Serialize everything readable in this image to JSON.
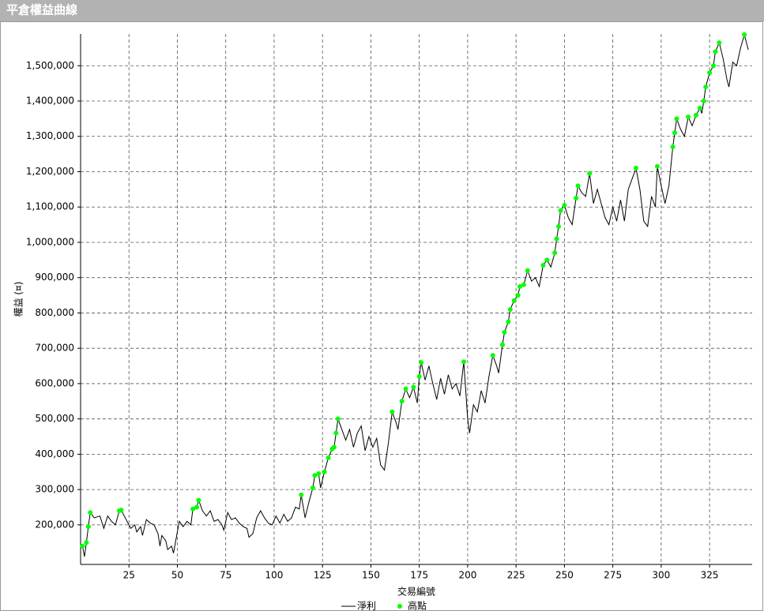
{
  "chart_data": {
    "type": "line",
    "title": "平倉權益曲線",
    "x_label": "交易編號",
    "y_label": "權益 (¤)",
    "xlim": [
      0,
      347
    ],
    "xticks": [
      25,
      50,
      75,
      100,
      125,
      150,
      175,
      200,
      225,
      250,
      275,
      300,
      325
    ],
    "ylim": [
      88000,
      1590000
    ],
    "yticks": [
      {
        "value": 200000,
        "label": "200,000"
      },
      {
        "value": 300000,
        "label": "300,000"
      },
      {
        "value": 400000,
        "label": "400,000"
      },
      {
        "value": 500000,
        "label": "500,000"
      },
      {
        "value": 600000,
        "label": "600,000"
      },
      {
        "value": 700000,
        "label": "700,000"
      },
      {
        "value": 800000,
        "label": "800,000"
      },
      {
        "value": 900000,
        "label": "900,000"
      },
      {
        "value": 1000000,
        "label": "1,000,000"
      },
      {
        "value": 1100000,
        "label": "1,100,000"
      },
      {
        "value": 1200000,
        "label": "1,200,000"
      },
      {
        "value": 1300000,
        "label": "1,300,000"
      },
      {
        "value": 1400000,
        "label": "1,400,000"
      },
      {
        "value": 1500000,
        "label": "1,500,000"
      }
    ],
    "grid": true,
    "legend": "bottom",
    "series": [
      {
        "name": "淨利",
        "color": "#000000",
        "style": "line",
        "x": [
          1,
          2,
          3,
          4,
          5,
          7,
          10,
          12,
          14,
          16,
          18,
          20,
          21,
          24,
          26,
          28,
          29,
          31,
          32,
          34,
          36,
          38,
          40,
          41,
          42,
          44,
          45,
          47,
          48,
          49,
          51,
          53,
          55,
          57,
          58,
          60,
          61,
          63,
          65,
          67,
          69,
          71,
          73,
          74,
          76,
          78,
          80,
          82,
          84,
          86,
          87,
          89,
          91,
          93,
          95,
          97,
          99,
          101,
          103,
          105,
          107,
          109,
          111,
          113,
          114,
          116,
          118,
          120,
          121,
          123,
          124,
          126,
          128,
          130,
          131,
          132,
          133,
          135,
          137,
          139,
          141,
          143,
          145,
          147,
          149,
          151,
          153,
          155,
          157,
          159,
          161,
          163,
          164,
          166,
          168,
          170,
          172,
          174,
          175,
          176,
          178,
          180,
          182,
          184,
          186,
          188,
          190,
          192,
          194,
          196,
          198,
          200,
          201,
          203,
          205,
          207,
          209,
          211,
          213,
          215,
          216,
          218,
          219,
          221,
          222,
          224,
          226,
          227,
          229,
          231,
          233,
          235,
          237,
          239,
          241,
          243,
          245,
          246,
          247,
          248,
          250,
          252,
          254,
          256,
          257,
          259,
          261,
          263,
          265,
          267,
          269,
          271,
          273,
          275,
          277,
          279,
          281,
          283,
          285,
          287,
          289,
          291,
          293,
          295,
          297,
          298,
          300,
          302,
          304,
          306,
          307,
          308,
          310,
          312,
          314,
          316,
          318,
          320,
          321,
          322,
          323,
          325,
          327,
          328,
          330,
          332,
          334,
          335,
          337,
          339,
          341,
          343,
          345
        ],
        "values": [
          140000,
          110000,
          150000,
          195000,
          235000,
          220000,
          225000,
          190000,
          225000,
          210000,
          200000,
          240000,
          242000,
          210000,
          190000,
          200000,
          180000,
          195000,
          170000,
          215000,
          205000,
          200000,
          175000,
          140000,
          170000,
          155000,
          130000,
          140000,
          120000,
          150000,
          210000,
          195000,
          210000,
          200000,
          245000,
          250000,
          270000,
          240000,
          225000,
          240000,
          210000,
          215000,
          200000,
          185000,
          235000,
          215000,
          220000,
          205000,
          195000,
          190000,
          165000,
          175000,
          220000,
          240000,
          220000,
          205000,
          200000,
          225000,
          205000,
          230000,
          210000,
          220000,
          250000,
          245000,
          285000,
          220000,
          265000,
          305000,
          340000,
          345000,
          305000,
          350000,
          390000,
          415000,
          420000,
          460000,
          500000,
          470000,
          440000,
          470000,
          420000,
          460000,
          480000,
          410000,
          450000,
          420000,
          445000,
          370000,
          355000,
          430000,
          520000,
          490000,
          470000,
          550000,
          585000,
          560000,
          590000,
          545000,
          620000,
          660000,
          610000,
          650000,
          600000,
          555000,
          615000,
          570000,
          625000,
          585000,
          600000,
          565000,
          662000,
          500000,
          460000,
          540000,
          520000,
          580000,
          545000,
          620000,
          680000,
          650000,
          630000,
          710000,
          745000,
          775000,
          810000,
          835000,
          850000,
          875000,
          880000,
          920000,
          890000,
          900000,
          875000,
          935000,
          950000,
          930000,
          970000,
          1010000,
          1045000,
          1090000,
          1105000,
          1070000,
          1050000,
          1125000,
          1160000,
          1140000,
          1130000,
          1195000,
          1110000,
          1150000,
          1110000,
          1070000,
          1050000,
          1100000,
          1060000,
          1120000,
          1060000,
          1150000,
          1180000,
          1210000,
          1150000,
          1060000,
          1045000,
          1130000,
          1100000,
          1215000,
          1160000,
          1110000,
          1160000,
          1270000,
          1310000,
          1350000,
          1320000,
          1300000,
          1355000,
          1330000,
          1360000,
          1380000,
          1365000,
          1400000,
          1440000,
          1480000,
          1500000,
          1540000,
          1565000,
          1520000,
          1460000,
          1440000,
          1510000,
          1500000,
          1550000,
          1588000,
          1545000
        ]
      },
      {
        "name": "高點",
        "color": "#00ff00",
        "style": "marker",
        "x": [
          1,
          3,
          4,
          5,
          20,
          21,
          58,
          60,
          61,
          114,
          120,
          121,
          123,
          126,
          128,
          130,
          131,
          132,
          133,
          161,
          166,
          168,
          172,
          175,
          176,
          198,
          213,
          218,
          219,
          221,
          222,
          224,
          226,
          227,
          229,
          231,
          239,
          241,
          245,
          246,
          247,
          248,
          250,
          256,
          257,
          263,
          287,
          298,
          306,
          307,
          308,
          314,
          318,
          320,
          322,
          323,
          325,
          327,
          328,
          330,
          343
        ],
        "values": [
          140000,
          150000,
          195000,
          235000,
          240000,
          242000,
          245000,
          250000,
          270000,
          285000,
          305000,
          340000,
          345000,
          350000,
          390000,
          415000,
          420000,
          460000,
          500000,
          520000,
          550000,
          585000,
          590000,
          620000,
          660000,
          662000,
          680000,
          710000,
          745000,
          775000,
          810000,
          835000,
          850000,
          875000,
          880000,
          920000,
          935000,
          950000,
          970000,
          1010000,
          1045000,
          1090000,
          1105000,
          1125000,
          1160000,
          1195000,
          1210000,
          1215000,
          1270000,
          1310000,
          1350000,
          1355000,
          1360000,
          1380000,
          1400000,
          1440000,
          1480000,
          1500000,
          1540000,
          1565000,
          1588000
        ]
      }
    ]
  }
}
